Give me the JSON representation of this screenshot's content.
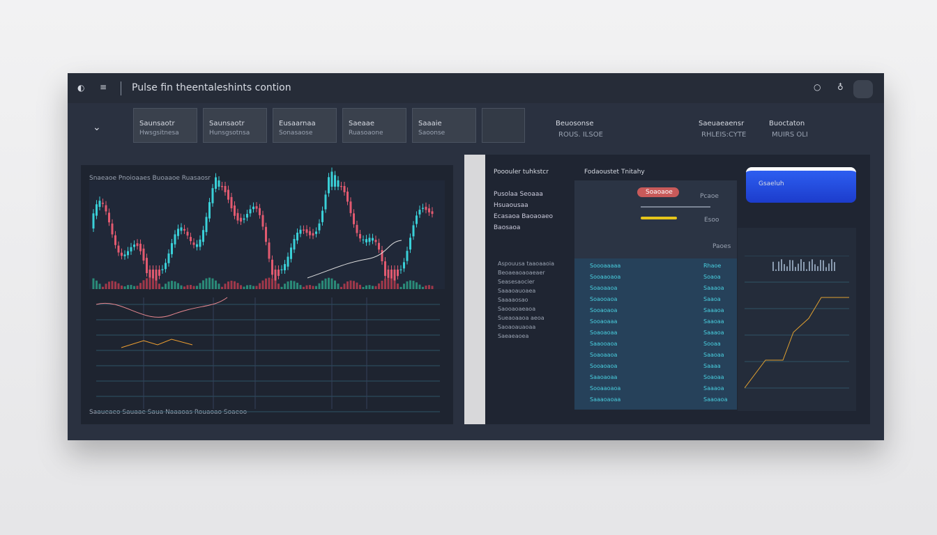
{
  "header": {
    "title": "Pulse fin theentaleshints contion"
  },
  "tabs": [
    {
      "title": "Saunsaotr",
      "sub": "Hwsgsitnesa"
    },
    {
      "title": "Saunsaotr",
      "sub": "Hunsgsotnsa"
    },
    {
      "title": "Eusaarnaa",
      "sub": "Sonasaose"
    },
    {
      "title": "Saeaae",
      "sub": "Ruasoaone"
    },
    {
      "title": "Saaaie",
      "sub": "Saoonse"
    }
  ],
  "stats": [
    {
      "title": "Beuosonse",
      "value": "ROUS. ILSOE"
    },
    {
      "title": "Saeuaeaensr",
      "value": "RHLEIS:CYTE"
    },
    {
      "title": "Buoctaton",
      "value": "MUIRS OLI"
    }
  ],
  "price_chart": {
    "legend": "Snaeaoe Pnoioaaes Buoaaoe Ruasaosr",
    "bottom": "Saaueaeo Sauaae Saua Naaaoas Rouaoao Soaeoo"
  },
  "side_list": {
    "title": "Pooouler tuhkstcr",
    "items": [
      "Pusolaa Seoaaa",
      "Hsuaousaa",
      "Ecasaoa Baoaoaeo",
      "Baosaoa"
    ],
    "rows": [
      "Aspouusa taaoaaoia",
      "Beoaeaoaoaeaer",
      "Seasesaocier",
      "Saaaoauoaea",
      "Saaaaosao",
      "Saooaoaeaoa",
      "Sueaoaaoa aeoa",
      "Saoaoauaoaa",
      "Saeaeaoea"
    ]
  },
  "order": {
    "title": "Fodaoustet Tnitahy",
    "button": "Soaoaoe",
    "status": "Pcaoe",
    "price": "Esoo",
    "sub": "Paoes",
    "action": "Gsaeluh"
  },
  "table": {
    "rows": [
      [
        "Soooaaaaa",
        "Rhaoe"
      ],
      [
        "Sooaaoaoa",
        "Soaoa"
      ],
      [
        "Soaoaaoa",
        "Saaaoa"
      ],
      [
        "Soaooaoa",
        "Saaoa"
      ],
      [
        "Sooaoaoa",
        "Saaaoa"
      ],
      [
        "Sooaoaaa",
        "Saaoaa"
      ],
      [
        "Soaoaoaa",
        "Saaaoa"
      ],
      [
        "Saaooaoa",
        "Sooaa"
      ],
      [
        "Soaoaaoa",
        "Saaoaa"
      ],
      [
        "Sooaoaoa",
        "Saaaa"
      ],
      [
        "Saaoaoaa",
        "Soaoaa"
      ],
      [
        "Sooaaoaoa",
        "Saaaoa"
      ],
      [
        "Saaaoaoaa",
        "Saaoaoa"
      ]
    ]
  }
}
